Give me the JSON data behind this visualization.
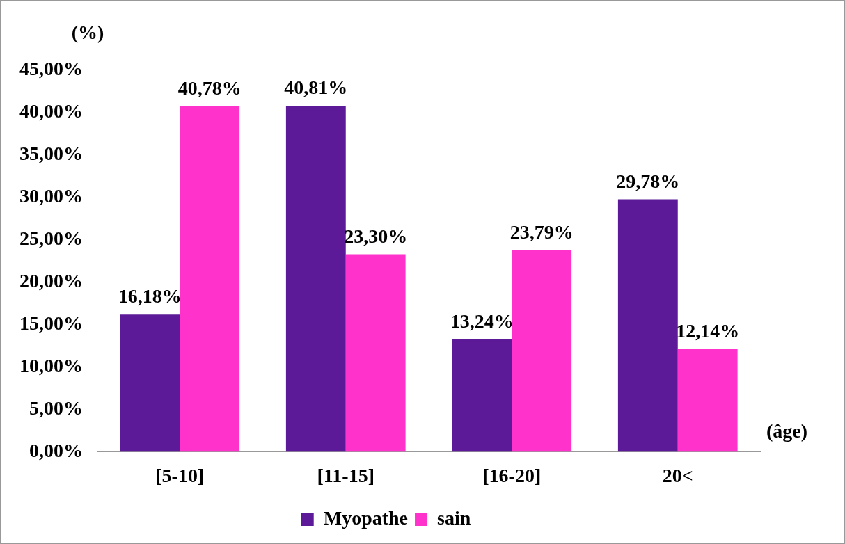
{
  "chart_data": {
    "type": "bar",
    "ylabel": "(%)",
    "xlabel": "(âge)",
    "categories": [
      "[5-10]",
      "[11-15]",
      "[16-20]",
      "20<"
    ],
    "series": [
      {
        "name": "Myopathe",
        "color": "#5c1a99",
        "values": [
          16.18,
          40.81,
          13.24,
          29.78
        ],
        "value_labels": [
          "16,18%",
          "40,81%",
          "13,24%",
          "29,78%"
        ]
      },
      {
        "name": "sain",
        "color": "#ff33cc",
        "values": [
          40.78,
          23.3,
          23.79,
          12.14
        ],
        "value_labels": [
          "40,78%",
          "23,30%",
          "23,79%",
          "12,14%"
        ]
      }
    ],
    "ylim": [
      0,
      45
    ],
    "yticks": [
      {
        "value": 0,
        "label": "0,00%"
      },
      {
        "value": 5,
        "label": "5,00%"
      },
      {
        "value": 10,
        "label": "10,00%"
      },
      {
        "value": 15,
        "label": "15,00%"
      },
      {
        "value": 20,
        "label": "20,00%"
      },
      {
        "value": 25,
        "label": "25,00%"
      },
      {
        "value": 30,
        "label": "30,00%"
      },
      {
        "value": 35,
        "label": "35,00%"
      },
      {
        "value": 40,
        "label": "40,00%"
      },
      {
        "value": 45,
        "label": "45,00%"
      }
    ],
    "grid": false,
    "legend": "bottom"
  }
}
